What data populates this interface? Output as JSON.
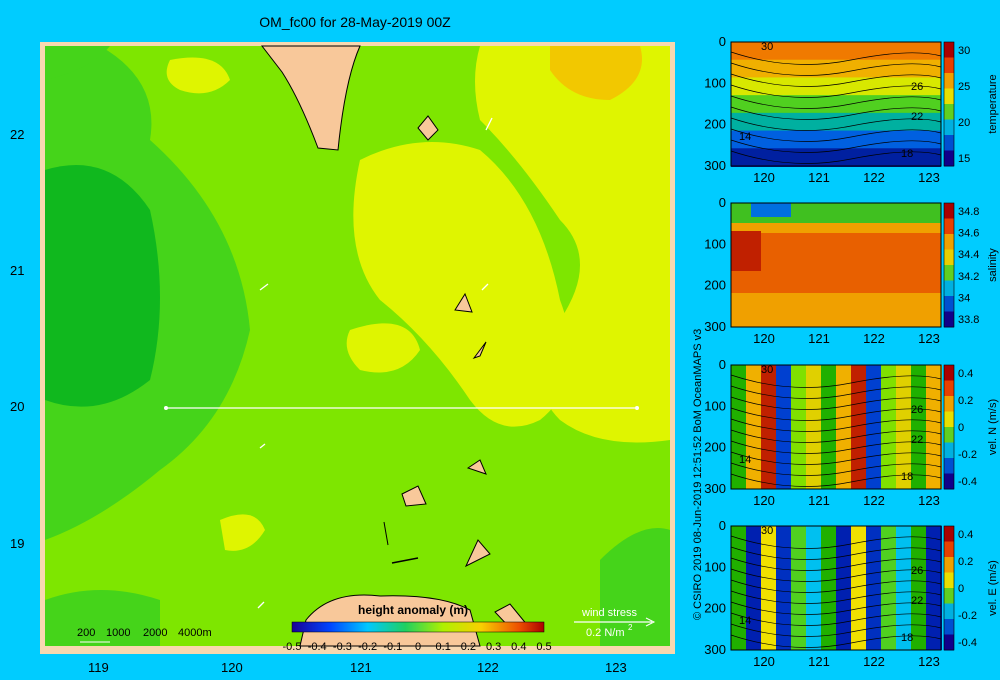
{
  "title": "OM_fc00 for 28-May-2019 00Z",
  "map": {
    "lat_ticks": [
      "22",
      "21",
      "20",
      "19"
    ],
    "lon_ticks": [
      "119",
      "120",
      "121",
      "122",
      "123"
    ],
    "depth_legend": [
      "200",
      "1000",
      "2000",
      "4000m"
    ],
    "colorbar_title": "height anomaly  (m)",
    "colorbar_ticks": [
      "-0.5",
      "-0.4",
      "-0.3",
      "-0.2",
      "-0.1",
      "0",
      "0.1",
      "0.2",
      "0.3",
      "0.4",
      "0.5"
    ],
    "wind_label": "wind stress",
    "wind_scale": "0.2 N/m",
    "wind_scale_sup": "2",
    "colors": {
      "land": "#f8c89a",
      "deep_green": "#10b81e",
      "green": "#45d41a",
      "lime": "#7ee600",
      "yellow": "#dff500",
      "orange": "#f2c800",
      "frame": "#f8d8b0"
    }
  },
  "credit": "© CSIRO 2019   08-Jun-2019 12:51:52 BoM OceanMAPS v3",
  "sections": [
    {
      "name": "temperature",
      "cb_ticks": [
        "30",
        "25",
        "20",
        "15"
      ],
      "contours": [
        "30",
        "26",
        "22",
        "18",
        "14"
      ]
    },
    {
      "name": "salinity",
      "cb_ticks": [
        "34.8",
        "34.6",
        "34.4",
        "34.2",
        "34",
        "33.8"
      ],
      "contours": []
    },
    {
      "name": "vel. N  (m/s)",
      "cb_ticks": [
        "0.4",
        "0.2",
        "0",
        "-0.2",
        "-0.4"
      ],
      "contours": [
        "30",
        "26",
        "22",
        "18",
        "14"
      ]
    },
    {
      "name": "vel. E  (m/s)",
      "cb_ticks": [
        "0.4",
        "0.2",
        "0",
        "-0.2",
        "-0.4"
      ],
      "contours": [
        "30",
        "26",
        "22",
        "18",
        "14"
      ]
    }
  ],
  "section_axes": {
    "depth_ticks": [
      "0",
      "100",
      "200",
      "300"
    ],
    "lon_ticks": [
      "120",
      "121",
      "122",
      "123"
    ]
  }
}
